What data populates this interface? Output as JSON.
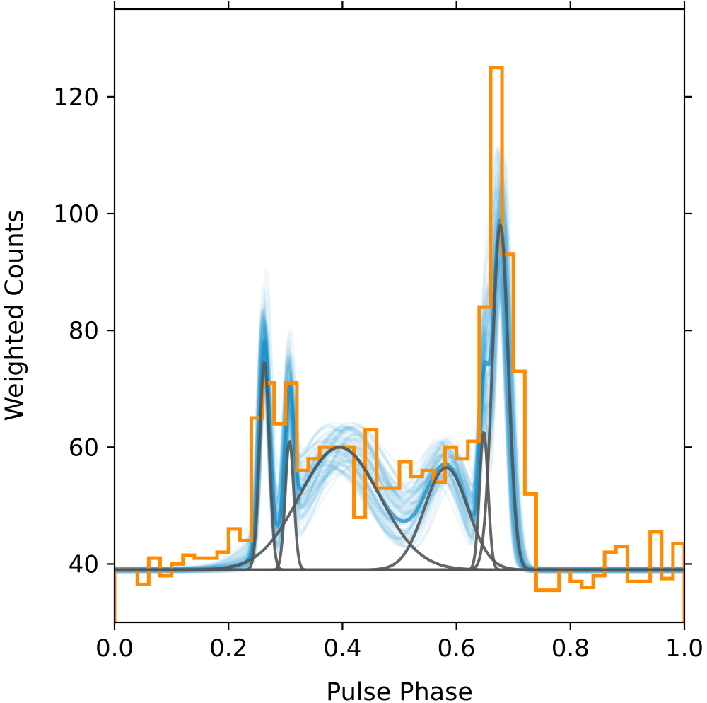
{
  "chart_data": {
    "type": "line",
    "xlabel": "Pulse Phase",
    "ylabel": "Weighted Counts",
    "xlim": [
      0.0,
      1.0
    ],
    "ylim": [
      30,
      135
    ],
    "x_ticks": [
      0.0,
      0.2,
      0.4,
      0.6,
      0.8,
      1.0
    ],
    "x_tick_labels": [
      "0.0",
      "0.2",
      "0.4",
      "0.6",
      "0.8",
      "1.0"
    ],
    "y_ticks": [
      40,
      60,
      80,
      100,
      120
    ],
    "y_tick_labels": [
      "40",
      "60",
      "80",
      "100",
      "120"
    ],
    "grid": false,
    "legend": false,
    "colors": {
      "histogram": "#ff8c00",
      "model_samples": "#2a9fd6",
      "model_best": "#1a8fc4",
      "components": "#555555",
      "baseline": "#000000"
    },
    "baseline": 39,
    "histogram": {
      "bin_width": 0.02,
      "bin_starts": [
        0.0,
        0.02,
        0.04,
        0.06,
        0.08,
        0.1,
        0.12,
        0.14,
        0.16,
        0.18,
        0.2,
        0.22,
        0.24,
        0.26,
        0.28,
        0.3,
        0.32,
        0.34,
        0.36,
        0.38,
        0.4,
        0.42,
        0.44,
        0.46,
        0.48,
        0.5,
        0.52,
        0.54,
        0.56,
        0.58,
        0.6,
        0.62,
        0.64,
        0.66,
        0.68,
        0.7,
        0.72,
        0.74,
        0.76,
        0.78,
        0.8,
        0.82,
        0.84,
        0.86,
        0.88,
        0.9,
        0.92,
        0.94,
        0.96,
        0.98
      ],
      "counts": [
        39,
        39,
        36.5,
        41,
        38,
        40,
        41.5,
        41,
        41,
        42,
        46,
        44,
        65,
        71,
        64,
        71,
        56,
        58,
        60,
        60,
        60,
        48,
        63,
        53,
        53,
        57.5,
        55,
        56,
        54,
        60,
        58,
        61,
        84,
        125,
        93,
        73,
        52,
        35.5,
        35.5,
        39,
        37,
        36,
        38,
        42,
        43,
        37,
        37,
        45.5,
        37.5,
        43.5
      ]
    },
    "components": [
      {
        "type": "gaussian",
        "center": 0.263,
        "sigma": 0.0085,
        "amplitude": 35.5
      },
      {
        "type": "gaussian",
        "center": 0.307,
        "sigma": 0.0075,
        "amplitude": 22
      },
      {
        "type": "gaussian",
        "center": 0.395,
        "sigma": 0.07,
        "amplitude": 21
      },
      {
        "type": "gaussian",
        "center": 0.582,
        "sigma": 0.038,
        "amplitude": 17.5
      },
      {
        "type": "gaussian",
        "center": 0.648,
        "sigma": 0.0075,
        "amplitude": 23.5
      },
      {
        "type": "gaussian",
        "center": 0.677,
        "sigma": 0.014,
        "amplitude": 59
      }
    ]
  }
}
